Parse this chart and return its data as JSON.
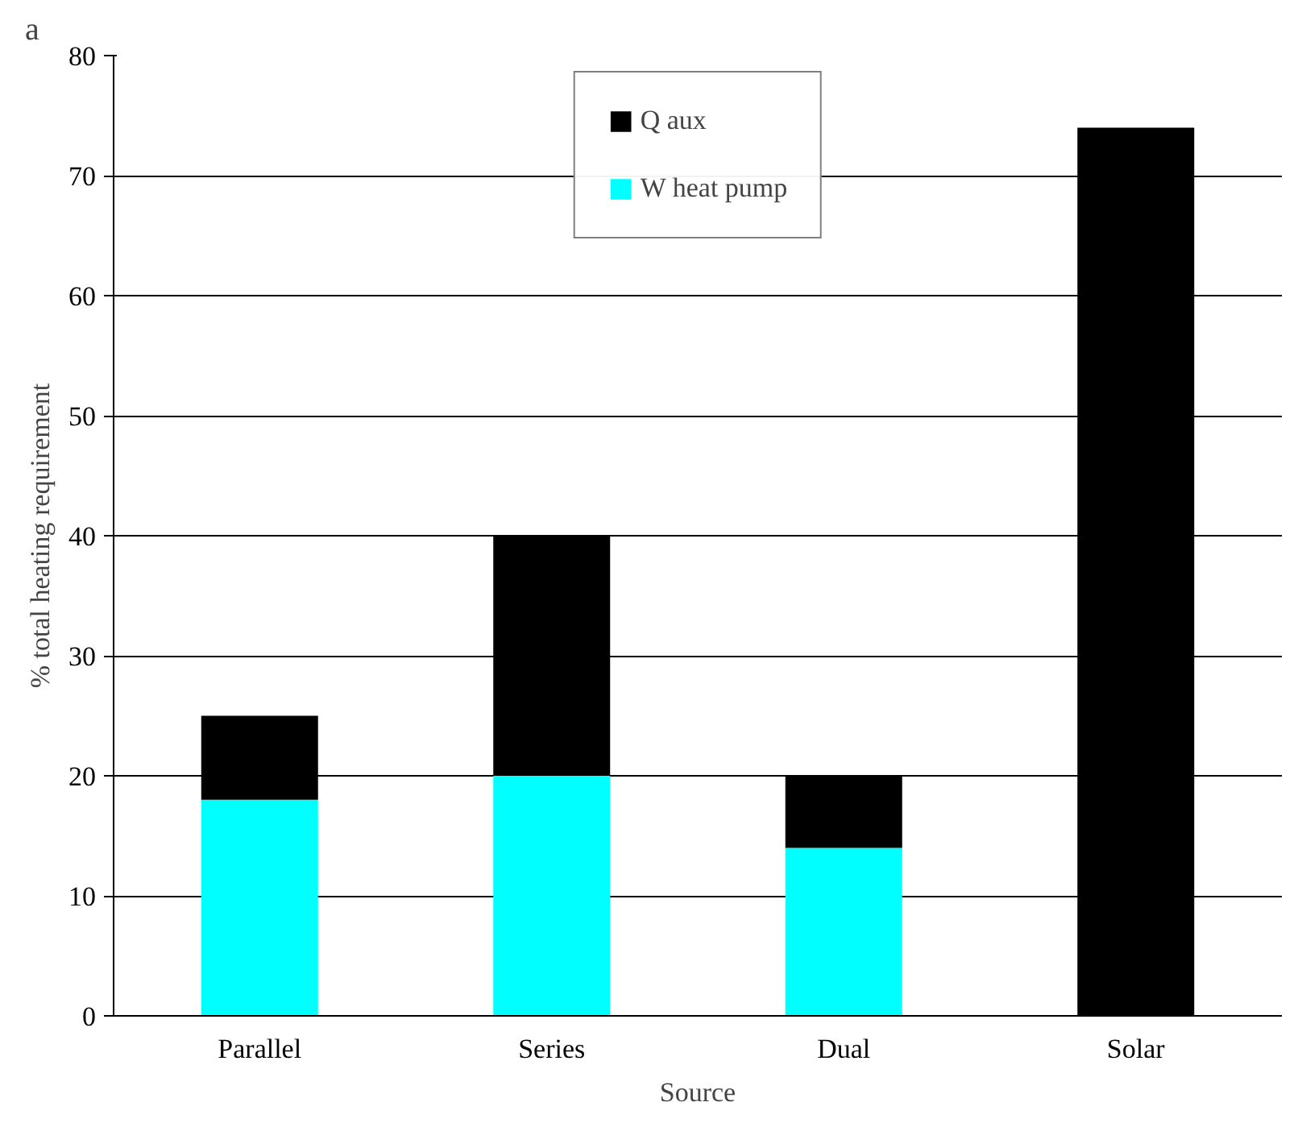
{
  "chart_data": {
    "type": "bar",
    "stacked": true,
    "xlabel": "Source",
    "ylabel": "% total heating requirement",
    "categories": [
      "Parallel",
      "Series",
      "Dual",
      "Solar"
    ],
    "series": [
      {
        "name": "W heat pump",
        "color": "#00ffff",
        "values": [
          18,
          20,
          14,
          0
        ]
      },
      {
        "name": "Q aux",
        "color": "#000000",
        "values": [
          7,
          20,
          6,
          74
        ]
      }
    ],
    "ylim": [
      0,
      80
    ],
    "yticks": [
      0,
      10,
      20,
      30,
      40,
      50,
      60,
      70,
      80
    ],
    "grid": "y",
    "legend": "top",
    "annotations": [
      "a"
    ]
  }
}
